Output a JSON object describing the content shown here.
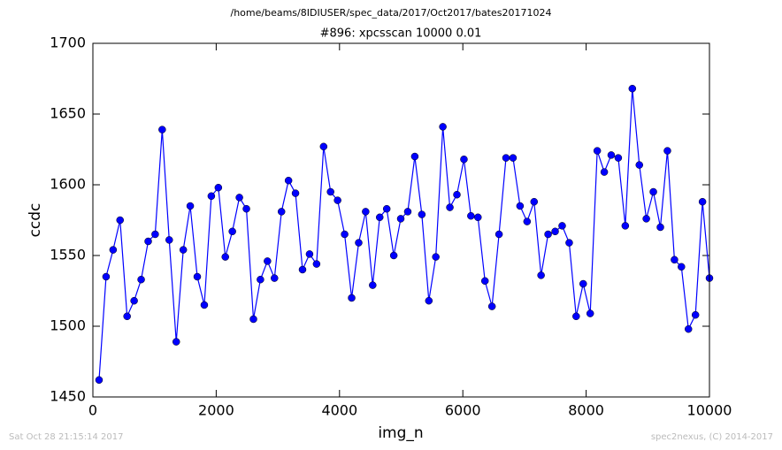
{
  "chart_data": {
    "type": "line",
    "title": "/home/beams/8IDIUSER/spec_data/2017/Oct2017/bates20171024",
    "subtitle": "#896: xpcsscan 10000 0.01",
    "xlabel": "img_n",
    "ylabel": "ccdc",
    "footer_left": "Sat Oct 28 21:15:14 2017",
    "footer_right": "spec2nexus, (C) 2014-2017",
    "x": [
      100,
      214,
      328,
      441,
      555,
      669,
      783,
      897,
      1010,
      1124,
      1238,
      1352,
      1466,
      1579,
      1693,
      1807,
      1921,
      2035,
      2148,
      2262,
      2376,
      2490,
      2604,
      2717,
      2831,
      2945,
      3059,
      3173,
      3286,
      3400,
      3514,
      3628,
      3742,
      3855,
      3969,
      4083,
      4197,
      4311,
      4424,
      4538,
      4652,
      4766,
      4880,
      4993,
      5107,
      5221,
      5335,
      5449,
      5562,
      5676,
      5790,
      5904,
      6018,
      6131,
      6245,
      6359,
      6473,
      6587,
      6700,
      6814,
      6928,
      7042,
      7156,
      7269,
      7383,
      7497,
      7611,
      7725,
      7838,
      7952,
      8066,
      8180,
      8294,
      8407,
      8521,
      8635,
      8749,
      8863,
      8976,
      9090,
      9204,
      9318,
      9432,
      9545,
      9659,
      9773,
      9887,
      10000
    ],
    "series": [
      {
        "color": "#0000ff",
        "values": [
          1462,
          1535,
          1554,
          1575,
          1507,
          1518,
          1533,
          1560,
          1565,
          1639,
          1561,
          1489,
          1554,
          1585,
          1535,
          1515,
          1592,
          1598,
          1549,
          1567,
          1591,
          1583,
          1505,
          1533,
          1546,
          1534,
          1581,
          1603,
          1594,
          1540,
          1551,
          1544,
          1627,
          1595,
          1589,
          1565,
          1520,
          1559,
          1581,
          1529,
          1577,
          1583,
          1550,
          1576,
          1581,
          1620,
          1579,
          1518,
          1549,
          1641,
          1584,
          1593,
          1618,
          1578,
          1577,
          1532,
          1514,
          1565,
          1619,
          1619,
          1585,
          1574,
          1588,
          1536,
          1565,
          1567,
          1571,
          1559,
          1507,
          1530,
          1509,
          1624,
          1609,
          1621,
          1619,
          1571,
          1668,
          1614,
          1576,
          1595,
          1570,
          1624,
          1547,
          1542,
          1498,
          1508,
          1588,
          1534
        ]
      }
    ],
    "xlim": [
      0,
      10000
    ],
    "ylim": [
      1450,
      1700
    ],
    "xticks": [
      0,
      2000,
      4000,
      6000,
      8000,
      10000
    ],
    "yticks": [
      1450,
      1500,
      1550,
      1600,
      1650,
      1700
    ],
    "grid": false
  }
}
